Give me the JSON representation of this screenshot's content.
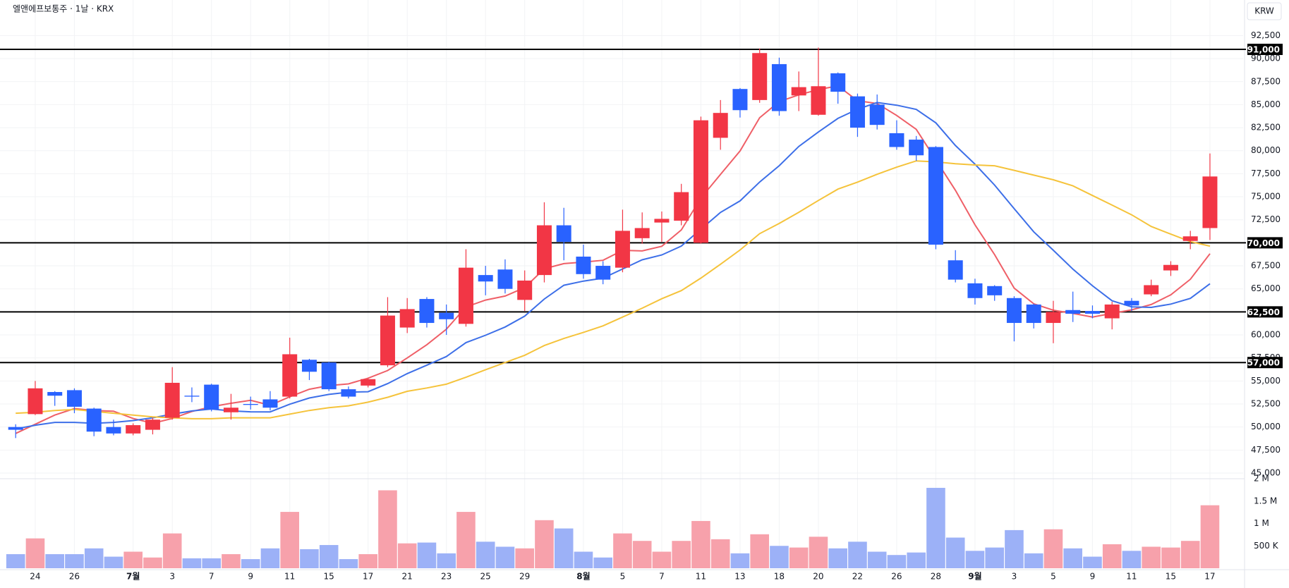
{
  "chart_data": {
    "type": "candlestick",
    "title": "엘앤에프보통주 · 1날 · KRX",
    "currency": "KRW",
    "up_color": "#f23645",
    "down_color": "#2962ff",
    "grid": true,
    "categories": [
      null,
      "24",
      null,
      "26",
      null,
      null,
      "7월",
      null,
      "3",
      null,
      "7",
      null,
      "9",
      null,
      "11",
      null,
      "15",
      null,
      "17",
      null,
      "21",
      null,
      "23",
      null,
      "25",
      null,
      "29",
      null,
      null,
      "8월",
      null,
      "5",
      null,
      "7",
      null,
      "11",
      null,
      "13",
      null,
      "18",
      null,
      "20",
      null,
      "22",
      null,
      "26",
      null,
      "28",
      null,
      "9월",
      null,
      "3",
      null,
      "5",
      null,
      "9",
      null,
      "11",
      null,
      "15",
      null,
      "17"
    ],
    "open": [
      50000,
      51400,
      53800,
      54000,
      52000,
      50000,
      49300,
      49700,
      51000,
      53400,
      54600,
      51600,
      52500,
      53000,
      53300,
      57300,
      57000,
      54100,
      54500,
      56700,
      60800,
      63900,
      62400,
      61200,
      66500,
      67100,
      63800,
      66500,
      71900,
      68500,
      67500,
      67300,
      70500,
      72200,
      72400,
      70000,
      81400,
      86700,
      85500,
      89400,
      86000,
      83900,
      88400,
      85900,
      85000,
      81900,
      81200,
      80400,
      68100,
      65600,
      65300,
      64000,
      63300,
      61300,
      62700,
      62600,
      61800,
      63700,
      64400,
      67000,
      70200,
      71600
    ],
    "high": [
      50300,
      55000,
      53900,
      54200,
      52100,
      50800,
      50400,
      51000,
      56500,
      54300,
      54700,
      53600,
      53300,
      53900,
      59700,
      57400,
      57100,
      54400,
      55300,
      64100,
      64000,
      64100,
      63300,
      69300,
      67500,
      68200,
      67000,
      74400,
      73800,
      69800,
      68000,
      73600,
      73300,
      73400,
      76400,
      83700,
      85500,
      86800,
      91100,
      90100,
      88600,
      91200,
      88500,
      86200,
      86100,
      83300,
      81600,
      80500,
      69200,
      66100,
      65400,
      64200,
      63400,
      63700,
      64700,
      63200,
      63600,
      64000,
      66000,
      68000,
      71300,
      79700
    ],
    "low": [
      48800,
      51300,
      52300,
      51500,
      49000,
      49100,
      49100,
      49200,
      50800,
      52700,
      51700,
      50800,
      51900,
      51800,
      53100,
      55100,
      53900,
      53100,
      54300,
      56500,
      60200,
      60800,
      60000,
      60900,
      64300,
      64500,
      62600,
      65700,
      68100,
      66100,
      65500,
      66800,
      69900,
      70100,
      71900,
      69900,
      80100,
      83600,
      85200,
      83800,
      84300,
      83800,
      85100,
      81500,
      82300,
      80100,
      78900,
      69300,
      65700,
      63300,
      63700,
      59300,
      60700,
      59100,
      61400,
      61800,
      60600,
      62600,
      64200,
      66400,
      69300,
      70300
    ],
    "close": [
      49700,
      54200,
      53400,
      52200,
      49500,
      49300,
      50200,
      50800,
      54800,
      53300,
      51900,
      52100,
      52400,
      52100,
      57900,
      56000,
      54100,
      53300,
      55200,
      62100,
      62800,
      61300,
      61700,
      67300,
      65800,
      65000,
      65900,
      71900,
      70100,
      66600,
      66000,
      71300,
      71600,
      72600,
      75500,
      83300,
      84100,
      84400,
      90600,
      84300,
      86900,
      87000,
      86400,
      82500,
      82800,
      80400,
      79500,
      69800,
      66000,
      64000,
      64300,
      61300,
      61300,
      62500,
      62300,
      62300,
      63300,
      63200,
      65400,
      67600,
      70700,
      77200
    ],
    "moving_averages": [
      {
        "color": "#ef5f67",
        "values": [
          49300,
          50300,
          51300,
          52000,
          51800,
          51720,
          50920,
          50400,
          50920,
          51680,
          52200,
          52580,
          52900,
          52360,
          53280,
          54100,
          54500,
          54680,
          55300,
          56140,
          57500,
          58940,
          60620,
          63040,
          63780,
          64220,
          65140,
          67180,
          67740,
          67900,
          68100,
          69180,
          69120,
          69620,
          71400,
          74860,
          77420,
          79980,
          83580,
          85340,
          86060,
          86640,
          87040,
          85420,
          85120,
          83820,
          82320,
          79000,
          75700,
          71940,
          68720,
          65080,
          63380,
          62680,
          62340,
          61940,
          62340,
          62720,
          63300,
          64360,
          66040,
          68820
        ]
      },
      {
        "color": "#3d6fe8",
        "values": [
          49800,
          50200,
          50500,
          50500,
          50400,
          50500,
          50700,
          51000,
          51400,
          51740,
          51960,
          51750,
          51650,
          51640,
          52480,
          53150,
          53540,
          53790,
          53830,
          54710,
          55800,
          56720,
          57650,
          59170,
          59960,
          60860,
          62040,
          63900,
          65390,
          65840,
          66160,
          67160,
          68150,
          68680,
          69650,
          71480,
          73300,
          74550,
          76600,
          78370,
          80460,
          82030,
          83510,
          84500,
          85230,
          84940,
          84480,
          83020,
          80560,
          78530,
          76270,
          73700,
          71190,
          69190,
          67140,
          65330,
          63710,
          63050,
          62990,
          63350,
          63970,
          65560
        ]
      },
      {
        "color": "#f5c33b",
        "values": [
          51500,
          51600,
          51800,
          51900,
          51700,
          51500,
          51300,
          51100,
          51000,
          50900,
          50900,
          51000,
          51000,
          51000,
          51400,
          51800,
          52100,
          52300,
          52700,
          53225,
          53880,
          54235,
          54650,
          55405,
          56220,
          57005,
          57790,
          58845,
          59610,
          60275,
          60980,
          61940,
          62900,
          63925,
          64805,
          66170,
          67670,
          69225,
          70995,
          72105,
          73310,
          74595,
          75830,
          76590,
          77440,
          78210,
          78890,
          78785,
          78580,
          78450,
          78365,
          77865,
          77350,
          76845,
          76185,
          75135,
          74095,
          73035,
          71775,
          70940,
          70130,
          69640
        ]
      }
    ],
    "ylim": [
      44540,
      96360
    ],
    "yticks": [
      {
        "value": 45000,
        "label": "45,000"
      },
      {
        "value": 47500,
        "label": "47,500"
      },
      {
        "value": 50000,
        "label": "50,000"
      },
      {
        "value": 52500,
        "label": "52,500"
      },
      {
        "value": 55000,
        "label": "55,000"
      },
      {
        "value": 57500,
        "label": "57,500"
      },
      {
        "value": 60000,
        "label": "60,000"
      },
      {
        "value": 62500,
        "label": "62,500"
      },
      {
        "value": 65000,
        "label": "65,000"
      },
      {
        "value": 67500,
        "label": "67,500"
      },
      {
        "value": 70000,
        "label": "70,000"
      },
      {
        "value": 72500,
        "label": "72,500"
      },
      {
        "value": 75000,
        "label": "75,000"
      },
      {
        "value": 77500,
        "label": "77,500"
      },
      {
        "value": 80000,
        "label": "80,000"
      },
      {
        "value": 82500,
        "label": "82,500"
      },
      {
        "value": 85000,
        "label": "85,000"
      },
      {
        "value": 87500,
        "label": "87,500"
      },
      {
        "value": 90000,
        "label": "90,000"
      },
      {
        "value": 92500,
        "label": "92,500"
      }
    ],
    "levels": [
      {
        "value": 91000,
        "label": "91,000"
      },
      {
        "value": 70000,
        "label": "70,000"
      },
      {
        "value": 62500,
        "label": "62,500"
      },
      {
        "value": 57000,
        "label": "57,000"
      }
    ],
    "volume": {
      "up_color": "#f7a1ab",
      "down_color": "#9cb1f7",
      "values": [
        315000,
        667000,
        315000,
        315000,
        444000,
        259000,
        370000,
        240000,
        778000,
        222000,
        222000,
        315000,
        204000,
        444000,
        1259000,
        426000,
        519000,
        204000,
        315000,
        1741000,
        556000,
        574000,
        333000,
        1259000,
        593000,
        481000,
        444000,
        1074000,
        889000,
        370000,
        240000,
        778000,
        611000,
        370000,
        611000,
        1056000,
        648000,
        333000,
        759000,
        500000,
        463000,
        704000,
        444000,
        593000,
        370000,
        296000,
        352000,
        1796000,
        685000,
        389000,
        463000,
        852000,
        333000,
        870000,
        444000,
        259000,
        537000,
        389000,
        481000,
        463000,
        611000,
        1407000
      ],
      "ylim": [
        0,
        2000000
      ],
      "yticks": [
        {
          "value": 500000,
          "label": "500 K"
        },
        {
          "value": 1000000,
          "label": "1 M"
        },
        {
          "value": 1500000,
          "label": "1.5 M"
        },
        {
          "value": 2000000,
          "label": "2 M"
        }
      ]
    }
  }
}
